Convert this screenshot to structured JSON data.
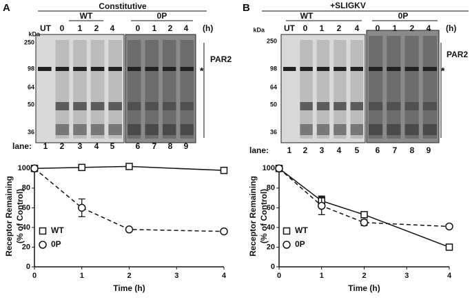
{
  "panels": [
    {
      "label": "A",
      "blot": {
        "title": "Constitutive",
        "groups": [
          "WT",
          "0P"
        ],
        "untreated": "UT",
        "timepoints": [
          "0",
          "1",
          "2",
          "4",
          "0",
          "1",
          "2",
          "4"
        ],
        "time_unit": "(h)",
        "kda_label": "kDa",
        "markers": [
          "250",
          "98",
          "64",
          "50",
          "36"
        ],
        "lane_label": "lane:",
        "lanes": [
          "1",
          "2",
          "3",
          "4",
          "5",
          "6",
          "7",
          "8",
          "9"
        ],
        "band_label": "PAR2",
        "asterisk": "*"
      }
    },
    {
      "label": "B",
      "blot": {
        "title": "+SLIGKV",
        "groups": [
          "WT",
          "0P"
        ],
        "untreated": "UT",
        "timepoints": [
          "0",
          "1",
          "2",
          "4",
          "0",
          "1",
          "2",
          "4"
        ],
        "time_unit": "(h)",
        "kda_label": "kDa",
        "markers": [
          "250",
          "98",
          "64",
          "50",
          "36"
        ],
        "lane_label": "lane:",
        "lanes": [
          "1",
          "2",
          "3",
          "4",
          "5",
          "6",
          "7",
          "8",
          "9"
        ],
        "band_label": "PAR2",
        "asterisk": "*"
      }
    }
  ],
  "chart_data": [
    {
      "type": "line",
      "xlabel": "Time (h)",
      "ylabel": [
        "Receptor Remaining",
        "(% of Control)"
      ],
      "x": [
        0,
        1,
        2,
        4
      ],
      "xlim": [
        0,
        4
      ],
      "xticks": [
        0,
        1,
        2,
        3,
        4
      ],
      "ylim": [
        0,
        103
      ],
      "yticks": [
        0,
        20,
        40,
        60,
        80,
        100
      ],
      "series": [
        {
          "name": "WT",
          "color": "#111111",
          "marker": "square",
          "dashed": false,
          "values": [
            100,
            101,
            102,
            98
          ],
          "errors": [
            null,
            null,
            null,
            null
          ]
        },
        {
          "name": "0P",
          "color": "#111111",
          "marker": "circle",
          "dashed": true,
          "values": [
            100,
            60,
            38,
            36
          ],
          "errors": [
            null,
            9,
            null,
            null
          ]
        }
      ]
    },
    {
      "type": "line",
      "xlabel": "Time (h)",
      "ylabel": [
        "Receptor Remaining",
        "(% of Control)"
      ],
      "x": [
        0,
        1,
        2,
        4
      ],
      "xlim": [
        0,
        4
      ],
      "xticks": [
        0,
        1,
        2,
        3,
        4
      ],
      "ylim": [
        0,
        103
      ],
      "yticks": [
        0,
        20,
        40,
        60,
        80,
        100
      ],
      "series": [
        {
          "name": "WT",
          "color": "#111111",
          "marker": "square",
          "dashed": false,
          "values": [
            100,
            67,
            53,
            20
          ],
          "errors": [
            null,
            5,
            null,
            null
          ]
        },
        {
          "name": "0P",
          "color": "#111111",
          "marker": "circle",
          "dashed": true,
          "values": [
            100,
            62,
            45,
            41
          ],
          "errors": [
            null,
            9,
            3,
            null
          ]
        }
      ]
    }
  ]
}
